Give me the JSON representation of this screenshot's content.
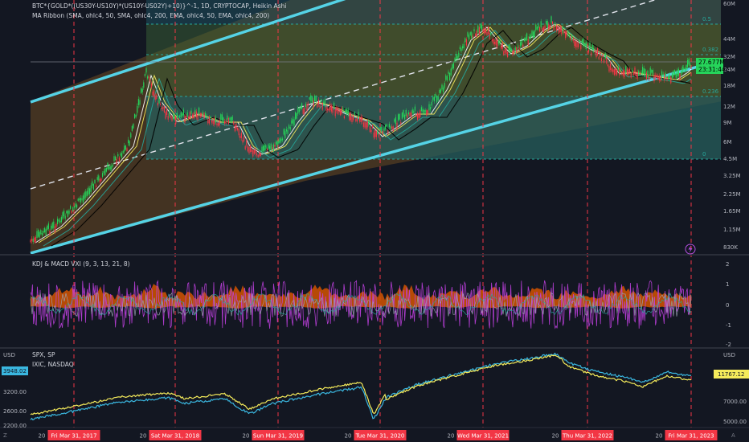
{
  "header": {
    "main_title": "BTC*{GOLD*((US30Y-US10Y)*(US10Y-US02Y)+10)}^-1, 1D, CRYPTOCAP, Heikin Ashi",
    "ribbon_title": "MA Ribbon (SMA, ohlc4, 50, SMA, ohlc4, 200, EMA, ohlc4, 50, EMA, ohlc4, 200)"
  },
  "price_panel": {
    "axis_labels": [
      "60M",
      "44M",
      "32M",
      "24M",
      "18M",
      "12M",
      "9M",
      "6M",
      "4.5M",
      "3.25M",
      "2.25M",
      "1.65M",
      "1.15M",
      "830K"
    ],
    "current_price": "27.677M",
    "countdown": "23:31:44",
    "fib_levels": [
      {
        "label": "0.5",
        "value": 0.5
      },
      {
        "label": "0.382",
        "value": 0.382
      },
      {
        "label": "0.236",
        "value": 0.236
      },
      {
        "label": "0",
        "value": 0
      }
    ],
    "colors": {
      "channel": "#55d3e6",
      "bull": "#26d45a",
      "bear": "#f23645",
      "fib_line": "#26a69a",
      "accent": "#2962ff"
    }
  },
  "kdj_panel": {
    "title": "KDJ & MACD VXI (9, 3, 13, 21, 8)",
    "axis_labels": [
      "2",
      "1",
      "0",
      "-1",
      "-2"
    ]
  },
  "index_panel": {
    "currency": "USD",
    "currency_right": "USD",
    "legend": [
      "SPX, SP",
      "IXIC, NASDAQ"
    ],
    "left_axis": [
      "3200.00",
      "2600.00",
      "2200.00"
    ],
    "right_axis": [
      "7000.00",
      "5000.00"
    ],
    "spx_price": "3948.02",
    "ixic_price": "11767.12",
    "colors": {
      "spx": "#f5eb5b",
      "ixic": "#3ab7e0"
    }
  },
  "time_axis": {
    "dates": [
      "Fri Mar 31, 2017",
      "Sat Mar 31, 2018",
      "Sun Mar 31, 2019",
      "Tue Mar 31, 2020",
      "Wed Mar 31, 2021",
      "Thu Mar 31, 2022",
      "Fri Mar 31, 2023"
    ],
    "prefix": "20"
  },
  "chart_data": {
    "type": "line",
    "x": [
      "2017-03-31",
      "2018-03-31",
      "2019-03-31",
      "2020-03-31",
      "2021-03-31",
      "2022-03-31",
      "2023-03-31"
    ],
    "series": [
      {
        "name": "BTC*{GOLD*((US30Y-US10Y)*(US10Y-US02Y)+10)}^-1",
        "values": [
          1.8,
          9.0,
          5.5,
          6.0,
          48.0,
          32.0,
          27.677
        ]
      },
      {
        "name": "SPX, SP",
        "values": [
          2360,
          2640,
          2830,
          2580,
          3970,
          4530,
          3948.02
        ]
      },
      {
        "name": "IXIC, NASDAQ",
        "values": [
          5900,
          7060,
          7730,
          7700,
          13250,
          14220,
          11767.12
        ]
      }
    ]
  }
}
